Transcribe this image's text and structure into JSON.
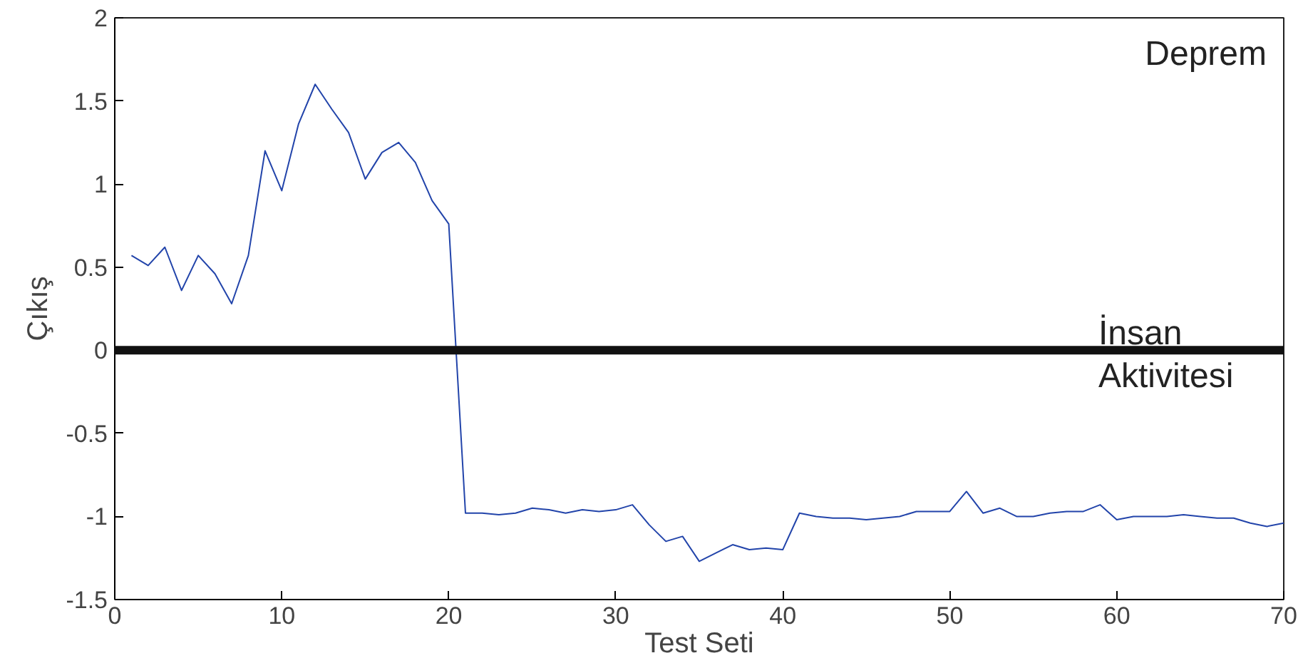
{
  "chart_data": {
    "type": "line",
    "xlabel": "Test Seti",
    "ylabel": "Çıkış",
    "x": [
      1,
      2,
      3,
      4,
      5,
      6,
      7,
      8,
      9,
      10,
      11,
      12,
      13,
      14,
      15,
      16,
      17,
      18,
      19,
      20,
      21,
      22,
      23,
      24,
      25,
      26,
      27,
      28,
      29,
      30,
      31,
      32,
      33,
      34,
      35,
      36,
      37,
      38,
      39,
      40,
      41,
      42,
      43,
      44,
      45,
      46,
      47,
      48,
      49,
      50,
      51,
      52,
      53,
      54,
      55,
      56,
      57,
      58,
      59,
      60,
      61,
      62,
      63,
      64,
      65,
      66,
      67,
      68,
      69,
      70
    ],
    "series": [
      {
        "color": "#2244aa",
        "values": [
          0.57,
          0.51,
          0.62,
          0.36,
          0.57,
          0.46,
          0.28,
          0.57,
          1.2,
          0.96,
          1.36,
          1.6,
          1.45,
          1.31,
          1.03,
          1.19,
          1.25,
          1.13,
          0.9,
          0.76,
          -0.98,
          -0.98,
          -0.99,
          -0.98,
          -0.95,
          -0.96,
          -0.98,
          -0.96,
          -0.97,
          -0.96,
          -0.93,
          -1.05,
          -1.15,
          -1.12,
          -1.27,
          -1.22,
          -1.17,
          -1.2,
          -1.19,
          -1.2,
          -0.98,
          -1.0,
          -1.01,
          -1.01,
          -1.02,
          -1.01,
          -1.0,
          -0.97,
          -0.97,
          -0.97,
          -0.85,
          -0.98,
          -0.95,
          -1.0,
          -1.0,
          -0.98,
          -0.97,
          -0.97,
          -0.93,
          -1.02,
          -1.0,
          -1.0,
          -1.0,
          -0.99,
          -1.0,
          -1.01,
          -1.01,
          -1.04,
          -1.06,
          -1.04
        ]
      }
    ],
    "xlim": [
      0,
      70
    ],
    "xticks": [
      0,
      10,
      20,
      30,
      40,
      50,
      60,
      70
    ],
    "ylim": [
      -1.5,
      2
    ],
    "yticks": [
      -1.5,
      -1,
      -0.5,
      0,
      0.5,
      1,
      1.5,
      2
    ],
    "ref_lines": [
      {
        "axis": "y",
        "value": 0,
        "color": "#111111"
      }
    ],
    "annotations": [
      "Deprem",
      "İnsan\nAktivitesi"
    ],
    "grid": false,
    "marker": "none",
    "line_style": "solid"
  }
}
